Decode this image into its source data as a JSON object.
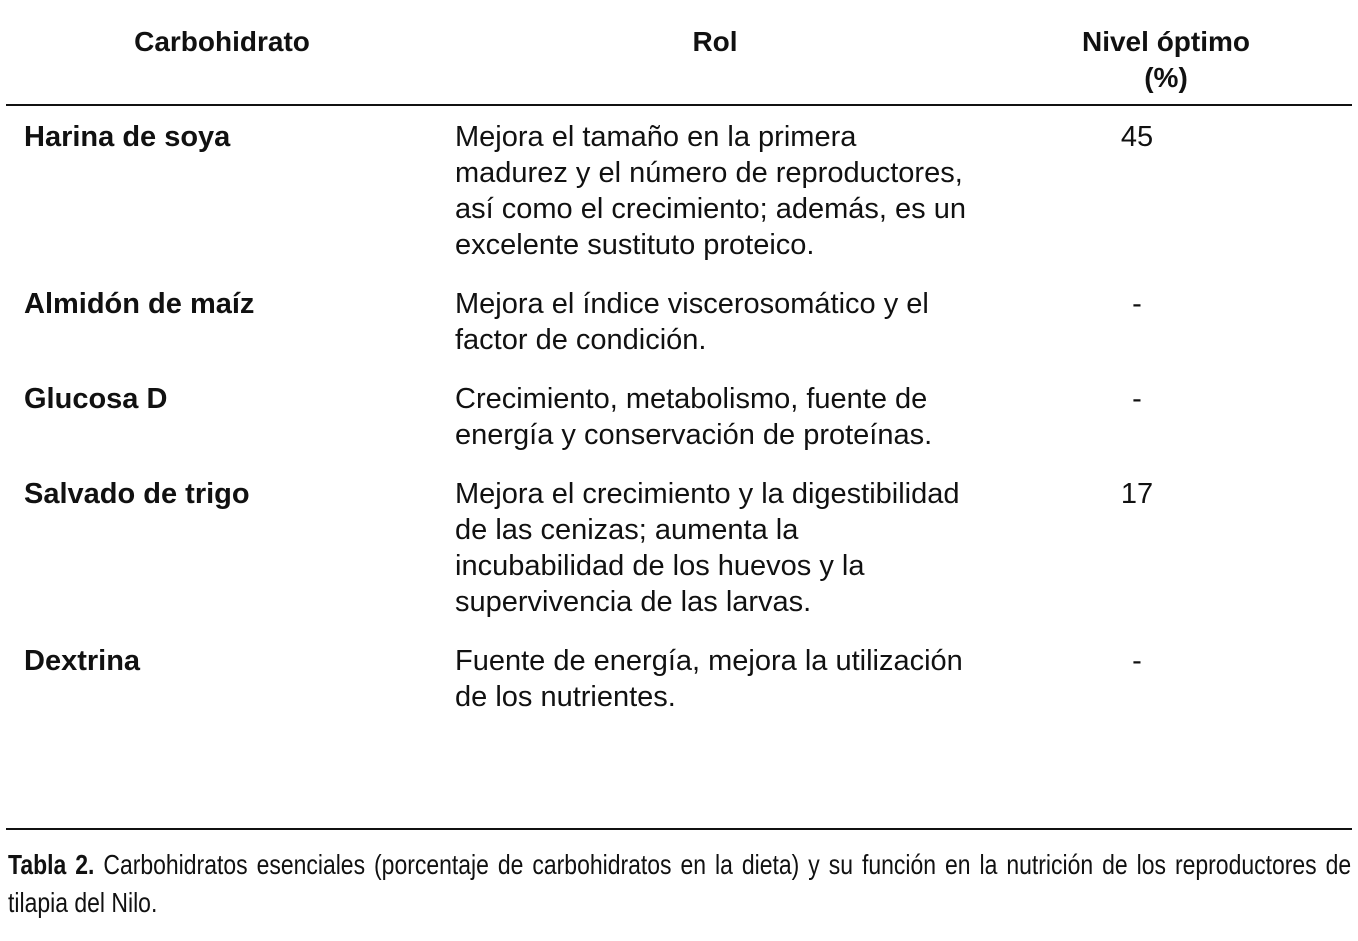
{
  "table": {
    "headers": [
      "Carbohidrato",
      "Rol",
      "Nivel óptimo",
      "(%)"
    ],
    "rows": [
      {
        "carbohidrato": "Harina de soya",
        "rol": "Mejora el tamaño en la primera madurez y el número de reproductores, así como el crecimiento; además, es un excelente sustituto proteico.",
        "nivel": "45"
      },
      {
        "carbohidrato": "Almidón de maíz",
        "rol": "Mejora el índice viscerosomático y el factor de condición.",
        "nivel": "-"
      },
      {
        "carbohidrato": "Glucosa D",
        "rol": "Crecimiento, metabolismo, fuente de energía y conservación de proteínas.",
        "nivel": "-"
      },
      {
        "carbohidrato": "Salvado de trigo",
        "rol": "Mejora el crecimiento y la digestibilidad de las cenizas; aumenta la incubabilidad de los huevos y la supervivencia de las larvas.",
        "nivel": "17"
      },
      {
        "carbohidrato": "Dextrina",
        "rol": "Fuente de energía, mejora la utilización de los nutrientes.",
        "nivel": "-"
      }
    ]
  },
  "caption": {
    "label": "Tabla 2.",
    "text": " Carbohidratos esenciales (porcentaje de carbohidratos en la dieta) y su función en la nutrición de los reproductores de tilapia del Nilo."
  }
}
